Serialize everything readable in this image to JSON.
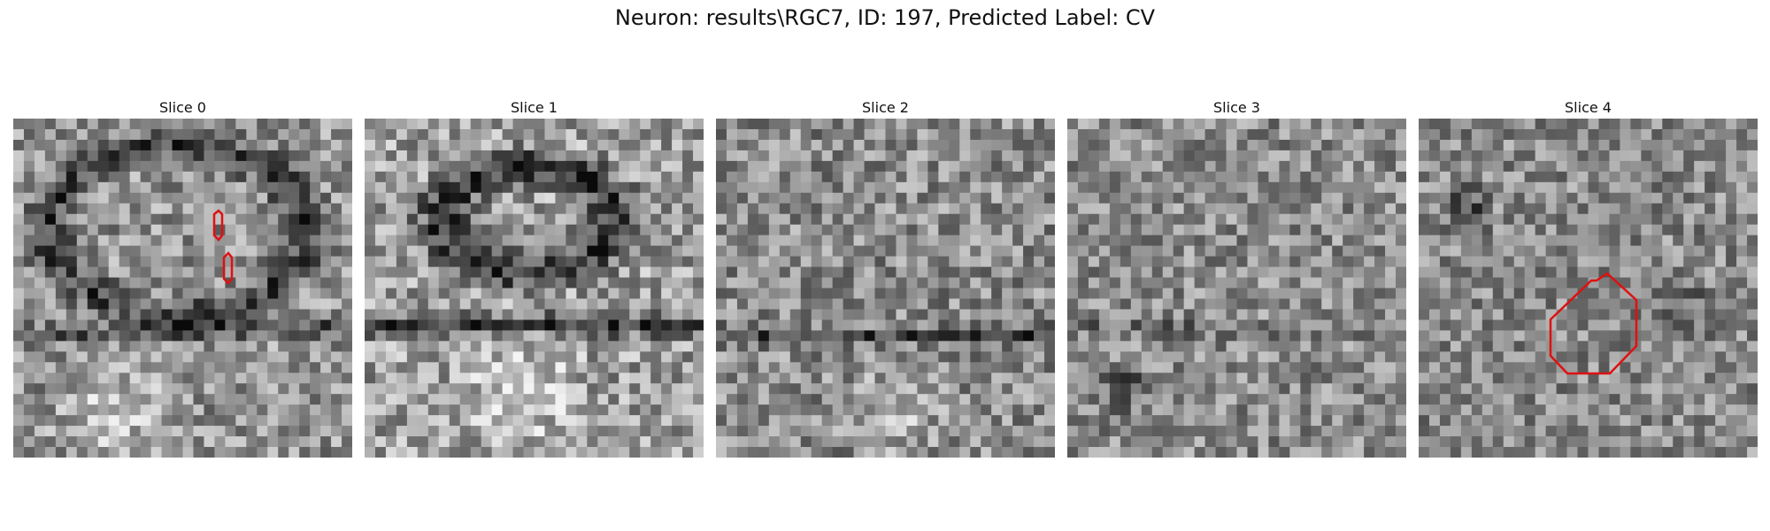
{
  "figure": {
    "title": "Neuron: results\\RGC7, ID: 197, Predicted Label: CV"
  },
  "panels": [
    {
      "title": "Slice 0",
      "brightness": 0.58,
      "contrast": 0.3,
      "seed": 11
    },
    {
      "title": "Slice 1",
      "brightness": 0.62,
      "contrast": 0.32,
      "seed": 23
    },
    {
      "title": "Slice 2",
      "brightness": 0.55,
      "contrast": 0.3,
      "seed": 37
    },
    {
      "title": "Slice 3",
      "brightness": 0.55,
      "contrast": 0.28,
      "seed": 41
    },
    {
      "title": "Slice 4",
      "brightness": 0.54,
      "contrast": 0.28,
      "seed": 53
    }
  ],
  "colors": {
    "contour": "#e01010",
    "background": "#ffffff"
  }
}
